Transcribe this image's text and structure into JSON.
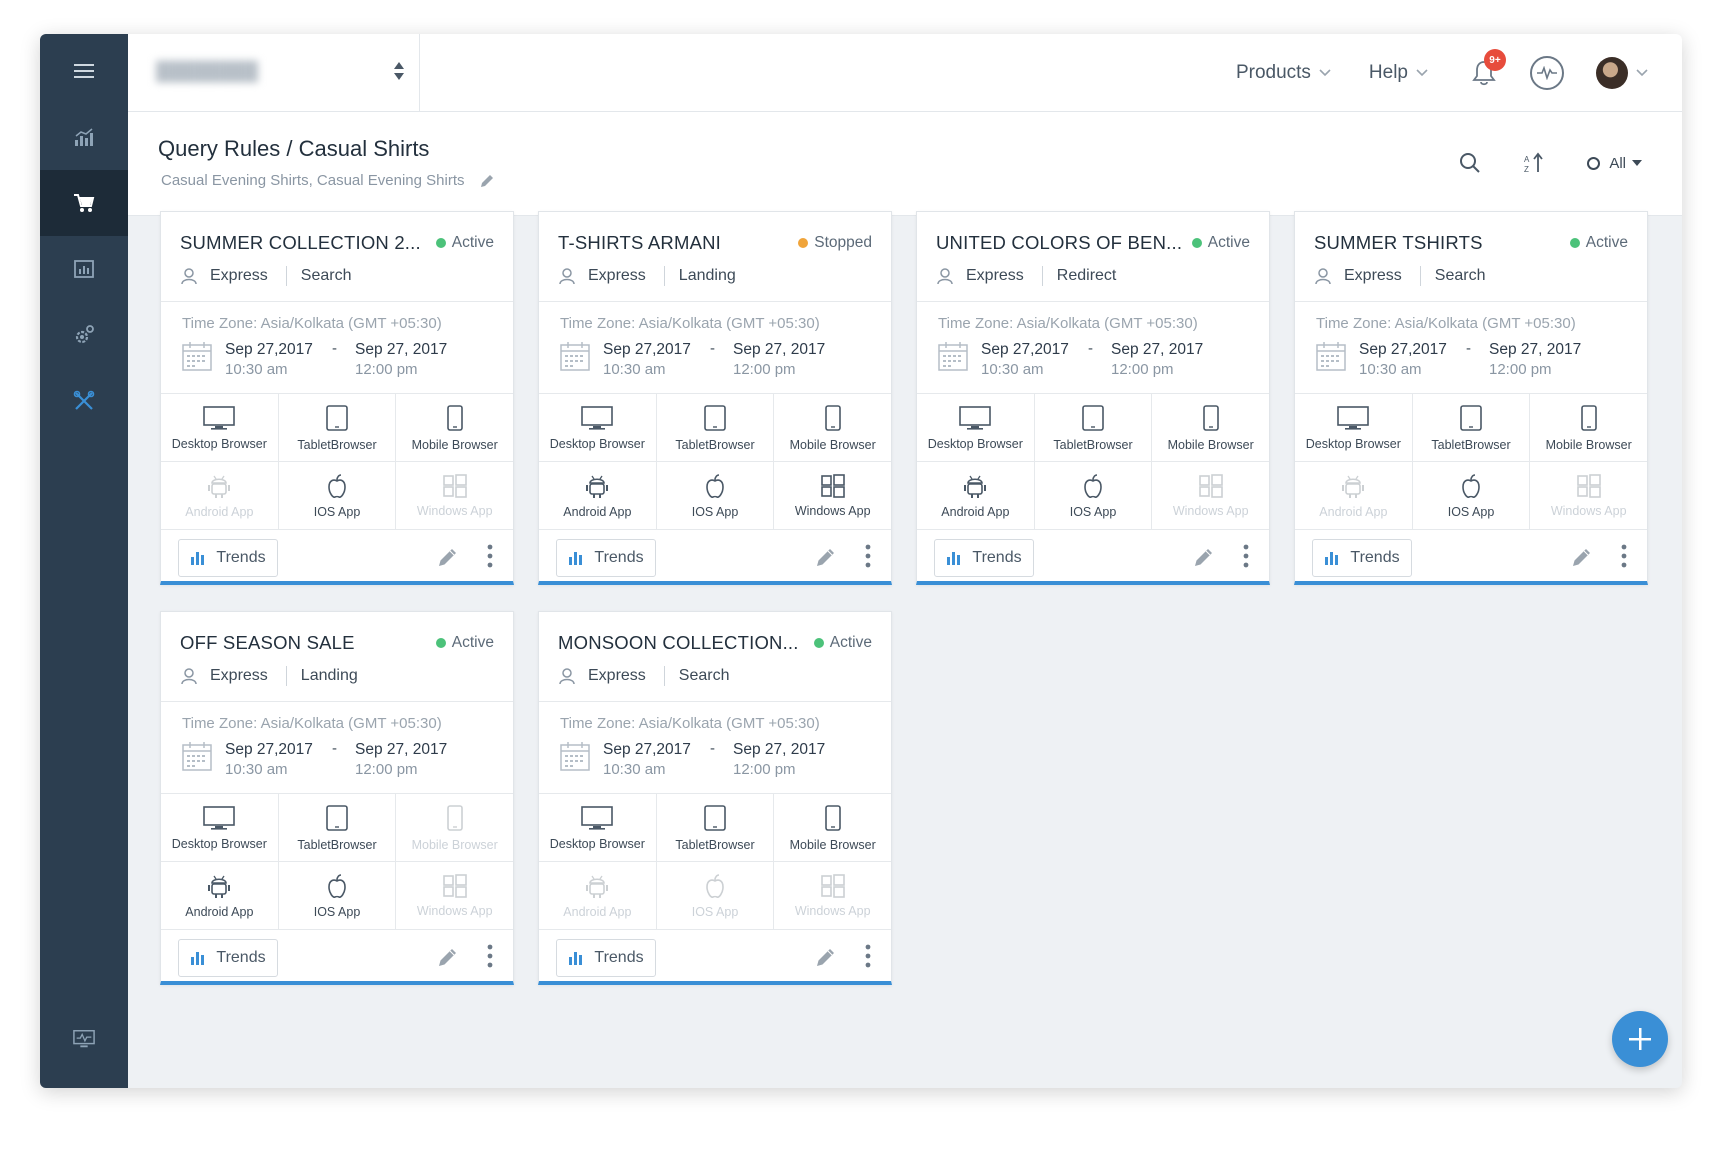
{
  "colors": {
    "sidebar": "#2c3e50",
    "accent": "#3a8fd6",
    "active": "#4cc27a",
    "stopped": "#f0a43a",
    "badge": "#e74c3c"
  },
  "sidebar": {
    "items": [
      "menu-icon",
      "analytics-icon",
      "cart-icon",
      "report-icon",
      "settings-icon",
      "tools-icon",
      "monitor-icon"
    ],
    "active": "cart-icon"
  },
  "header": {
    "products_label": "Products",
    "help_label": "Help",
    "notification_badge": "9+"
  },
  "page": {
    "title": "Query Rules / Casual Shirts",
    "subtitle": "Casual Evening Shirts, Casual Evening Shirts",
    "filter_label": "All"
  },
  "cards": [
    {
      "title": "SUMMER COLLECTION 2...",
      "status": "Active",
      "status_color": "#4cc27a",
      "tag1": "Express",
      "tag2": "Search",
      "timezone": "Time Zone: Asia/Kolkata (GMT +05:30)",
      "start_date": "Sep 27,2017",
      "start_time": "10:30 am",
      "end_date": "Sep 27, 2017",
      "end_time": "12:00 pm",
      "desktop_label": "Desktop Browser",
      "tablet_label": "TabletBrowser",
      "mobile_label": "Mobile Browser",
      "android_label": "Android App",
      "ios_label": "IOS App",
      "windows_label": "Windows App",
      "enabled": {
        "desktop": true,
        "tablet": true,
        "mobile": true,
        "android": false,
        "ios": true,
        "windows": false
      },
      "trends_label": "Trends"
    },
    {
      "title": "T-SHIRTS ARMANI",
      "status": "Stopped",
      "status_color": "#f0a43a",
      "tag1": "Express",
      "tag2": "Landing",
      "timezone": "Time Zone: Asia/Kolkata (GMT +05:30)",
      "start_date": "Sep 27,2017",
      "start_time": "10:30 am",
      "end_date": "Sep 27, 2017",
      "end_time": "12:00 pm",
      "desktop_label": "Desktop Browser",
      "tablet_label": "TabletBrowser",
      "mobile_label": "Mobile Browser",
      "android_label": "Android App",
      "ios_label": "IOS App",
      "windows_label": "Windows App",
      "enabled": {
        "desktop": true,
        "tablet": true,
        "mobile": true,
        "android": true,
        "ios": true,
        "windows": true
      },
      "trends_label": "Trends"
    },
    {
      "title": "UNITED COLORS OF BEN...",
      "status": "Active",
      "status_color": "#4cc27a",
      "tag1": "Express",
      "tag2": "Redirect",
      "timezone": "Time Zone: Asia/Kolkata (GMT +05:30)",
      "start_date": "Sep 27,2017",
      "start_time": "10:30 am",
      "end_date": "Sep 27, 2017",
      "end_time": "12:00 pm",
      "desktop_label": "Desktop Browser",
      "tablet_label": "TabletBrowser",
      "mobile_label": "Mobile Browser",
      "android_label": "Android App",
      "ios_label": "IOS App",
      "windows_label": "Windows App",
      "enabled": {
        "desktop": true,
        "tablet": true,
        "mobile": true,
        "android": true,
        "ios": true,
        "windows": false
      },
      "trends_label": "Trends"
    },
    {
      "title": "SUMMER TSHIRTS",
      "status": "Active",
      "status_color": "#4cc27a",
      "tag1": "Express",
      "tag2": "Search",
      "timezone": "Time Zone: Asia/Kolkata (GMT +05:30)",
      "start_date": "Sep 27,2017",
      "start_time": "10:30 am",
      "end_date": "Sep 27, 2017",
      "end_time": "12:00 pm",
      "desktop_label": "Desktop Browser",
      "tablet_label": "TabletBrowser",
      "mobile_label": "Mobile Browser",
      "android_label": "Android App",
      "ios_label": "IOS App",
      "windows_label": "Windows App",
      "enabled": {
        "desktop": true,
        "tablet": true,
        "mobile": true,
        "android": false,
        "ios": true,
        "windows": false
      },
      "trends_label": "Trends"
    },
    {
      "title": "OFF SEASON SALE",
      "status": "Active",
      "status_color": "#4cc27a",
      "tag1": "Express",
      "tag2": "Landing",
      "timezone": "Time Zone: Asia/Kolkata (GMT +05:30)",
      "start_date": "Sep 27,2017",
      "start_time": "10:30 am",
      "end_date": "Sep 27, 2017",
      "end_time": "12:00 pm",
      "desktop_label": "Desktop Browser",
      "tablet_label": "TabletBrowser",
      "mobile_label": "Mobile Browser",
      "android_label": "Android App",
      "ios_label": "IOS App",
      "windows_label": "Windows App",
      "enabled": {
        "desktop": true,
        "tablet": true,
        "mobile": false,
        "android": true,
        "ios": true,
        "windows": false
      },
      "trends_label": "Trends"
    },
    {
      "title": "MONSOON COLLECTION...",
      "status": "Active",
      "status_color": "#4cc27a",
      "tag1": "Express",
      "tag2": "Search",
      "timezone": "Time Zone: Asia/Kolkata (GMT +05:30)",
      "start_date": "Sep 27,2017",
      "start_time": "10:30 am",
      "end_date": "Sep 27, 2017",
      "end_time": "12:00 pm",
      "desktop_label": "Desktop Browser",
      "tablet_label": "TabletBrowser",
      "mobile_label": "Mobile Browser",
      "android_label": "Android App",
      "ios_label": "IOS App",
      "windows_label": "Windows App",
      "enabled": {
        "desktop": true,
        "tablet": true,
        "mobile": true,
        "android": false,
        "ios": false,
        "windows": false
      },
      "trends_label": "Trends"
    }
  ]
}
